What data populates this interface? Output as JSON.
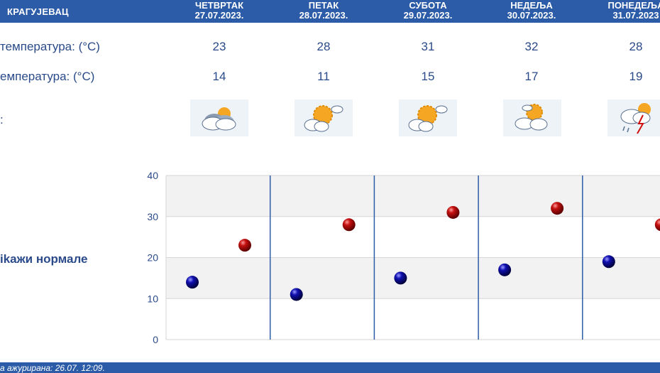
{
  "header": {
    "city": "КРАГУЈЕВАЦ",
    "days": [
      {
        "name": "ЧЕТВРТАК",
        "date": "27.07.2023."
      },
      {
        "name": "ПЕТАК",
        "date": "28.07.2023."
      },
      {
        "name": "СУБОТА",
        "date": "29.07.2023."
      },
      {
        "name": "НЕДЕЉА",
        "date": "30.07.2023."
      },
      {
        "name": "ПОНЕДЕЉА",
        "date": "31.07.2023"
      }
    ]
  },
  "rows": {
    "max_label": "температура: (°C)",
    "min_label": "емпература: (°C)",
    "icon_label": ":"
  },
  "max_temps": [
    "23",
    "28",
    "31",
    "32",
    "28"
  ],
  "min_temps": [
    "14",
    "11",
    "15",
    "17",
    "19"
  ],
  "icons": [
    "partly-cloudy-icon",
    "sun-cloud-icon",
    "sun-cloud-icon",
    "sun-cloud-icon",
    "thunderstorm-icon"
  ],
  "normals_link": "ikажи нормале",
  "footer": {
    "updated": "а ажурирана:  26.07.  12:09."
  },
  "colors": {
    "header": "#2c5ca8",
    "max_dot": "#c41010",
    "min_dot": "#1010b0",
    "divider": "#2c5ca8"
  },
  "chart_data": {
    "type": "scatter",
    "categories": [
      "27.07.2023.",
      "28.07.2023.",
      "29.07.2023.",
      "30.07.2023.",
      "31.07.2023"
    ],
    "series": [
      {
        "values": [
          14,
          11,
          15,
          17,
          19
        ]
      },
      {
        "values": [
          23,
          28,
          31,
          32,
          28
        ]
      }
    ],
    "ylim": [
      0,
      40
    ],
    "yticks": [
      "0",
      "10",
      "20",
      "30",
      "40"
    ],
    "grid": true
  }
}
